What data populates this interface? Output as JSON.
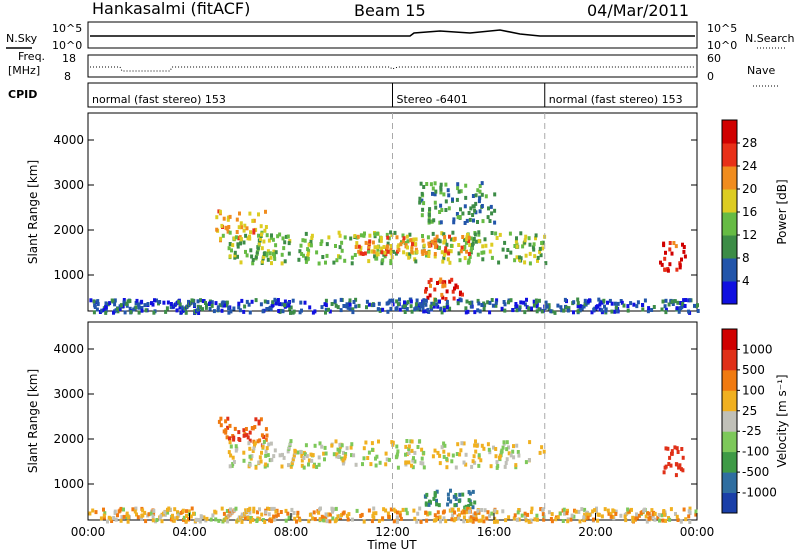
{
  "header": {
    "station": "Hankasalmi (fitACF)",
    "beam": "Beam 15",
    "date": "04/Mar/2011"
  },
  "status_panels": {
    "nsky_label": "N.Sky",
    "nsearch_label": "N.Search",
    "nsky_ticks": [
      "10^5",
      "10^0"
    ],
    "nsearch_ticks": [
      "10^5",
      "10^0"
    ],
    "freq_label": "Freq.",
    "freq_unit": "[MHz]",
    "freq_ticks": [
      "18",
      "8"
    ],
    "nave_label": "Nave",
    "nave_ticks": [
      "60",
      "0"
    ],
    "cpid_label": "CPID",
    "cpid_segments": [
      {
        "label": "normal (fast stereo) 153",
        "start_hour": 0,
        "end_hour": 12
      },
      {
        "label": "Stereo -6401",
        "start_hour": 12,
        "end_hour": 18
      },
      {
        "label": "normal (fast stereo) 153",
        "start_hour": 18,
        "end_hour": 24
      }
    ]
  },
  "chart_data": [
    {
      "type": "heatmap",
      "name": "power",
      "ylabel": "Slant Range [km]",
      "yticks": [
        "1000",
        "2000",
        "3000",
        "4000"
      ],
      "ylim": [
        200,
        4600
      ],
      "xlim": [
        0,
        24
      ],
      "colorbar": {
        "label": "Power [dB]",
        "ticks": [
          "4",
          "8",
          "12",
          "16",
          "20",
          "24",
          "28"
        ],
        "range": [
          0,
          32
        ],
        "colors": [
          "#1010e0",
          "#2255aa",
          "#3c8c46",
          "#66bb44",
          "#ddcc22",
          "#f08c1e",
          "#e83018",
          "#d00000"
        ]
      },
      "regions": [
        {
          "t0": 5.0,
          "t1": 7.0,
          "r0": 1800,
          "r1": 2500,
          "level": 20
        },
        {
          "t0": 5.5,
          "t1": 18.0,
          "r0": 1300,
          "r1": 2000,
          "level": 14
        },
        {
          "t0": 10.5,
          "t1": 15.0,
          "r0": 1500,
          "r1": 1900,
          "level": 22
        },
        {
          "t0": 13.2,
          "t1": 14.7,
          "r0": 500,
          "r1": 1000,
          "level": 26
        },
        {
          "t0": 22.5,
          "t1": 23.5,
          "r0": 1100,
          "r1": 1800,
          "level": 28
        },
        {
          "t0": 13.0,
          "t1": 16.0,
          "r0": 2200,
          "r1": 3100,
          "level": 10
        },
        {
          "t0": 0.0,
          "t1": 24.0,
          "r0": 200,
          "r1": 500,
          "level": 6
        }
      ]
    },
    {
      "type": "heatmap",
      "name": "velocity",
      "ylabel": "Slant Range [km]",
      "yticks": [
        "1000",
        "2000",
        "3000",
        "4000"
      ],
      "ylim": [
        200,
        4600
      ],
      "xlim": [
        0,
        24
      ],
      "colorbar": {
        "label": "Velocity [m s⁻¹]",
        "ticks": [
          "1000",
          "500",
          "100",
          "25",
          "-25",
          "-100",
          "-500",
          "-1000"
        ],
        "colors": [
          "#1a3fa8",
          "#2f6ea0",
          "#3e9a46",
          "#7dc85a",
          "#c0c0b8",
          "#f0b020",
          "#f07a10",
          "#e03018",
          "#d00000"
        ]
      },
      "regions": [
        {
          "t0": 5.0,
          "t1": 7.0,
          "r0": 1900,
          "r1": 2500,
          "vel": -300
        },
        {
          "t0": 5.5,
          "t1": 18.0,
          "r0": 1400,
          "r1": 2000,
          "vel": 0
        },
        {
          "t0": 13.2,
          "t1": 15.2,
          "r0": 500,
          "r1": 900,
          "vel": 200
        },
        {
          "t0": 22.6,
          "t1": 23.5,
          "r0": 1200,
          "r1": 1900,
          "vel": -400
        },
        {
          "t0": 0.0,
          "t1": 24.0,
          "r0": 200,
          "r1": 500,
          "vel": -50
        }
      ]
    }
  ],
  "xaxis": {
    "label": "Time UT",
    "ticks": [
      "00:00",
      "04:00",
      "08:00",
      "12:00",
      "16:00",
      "20:00",
      "00:00"
    ]
  }
}
